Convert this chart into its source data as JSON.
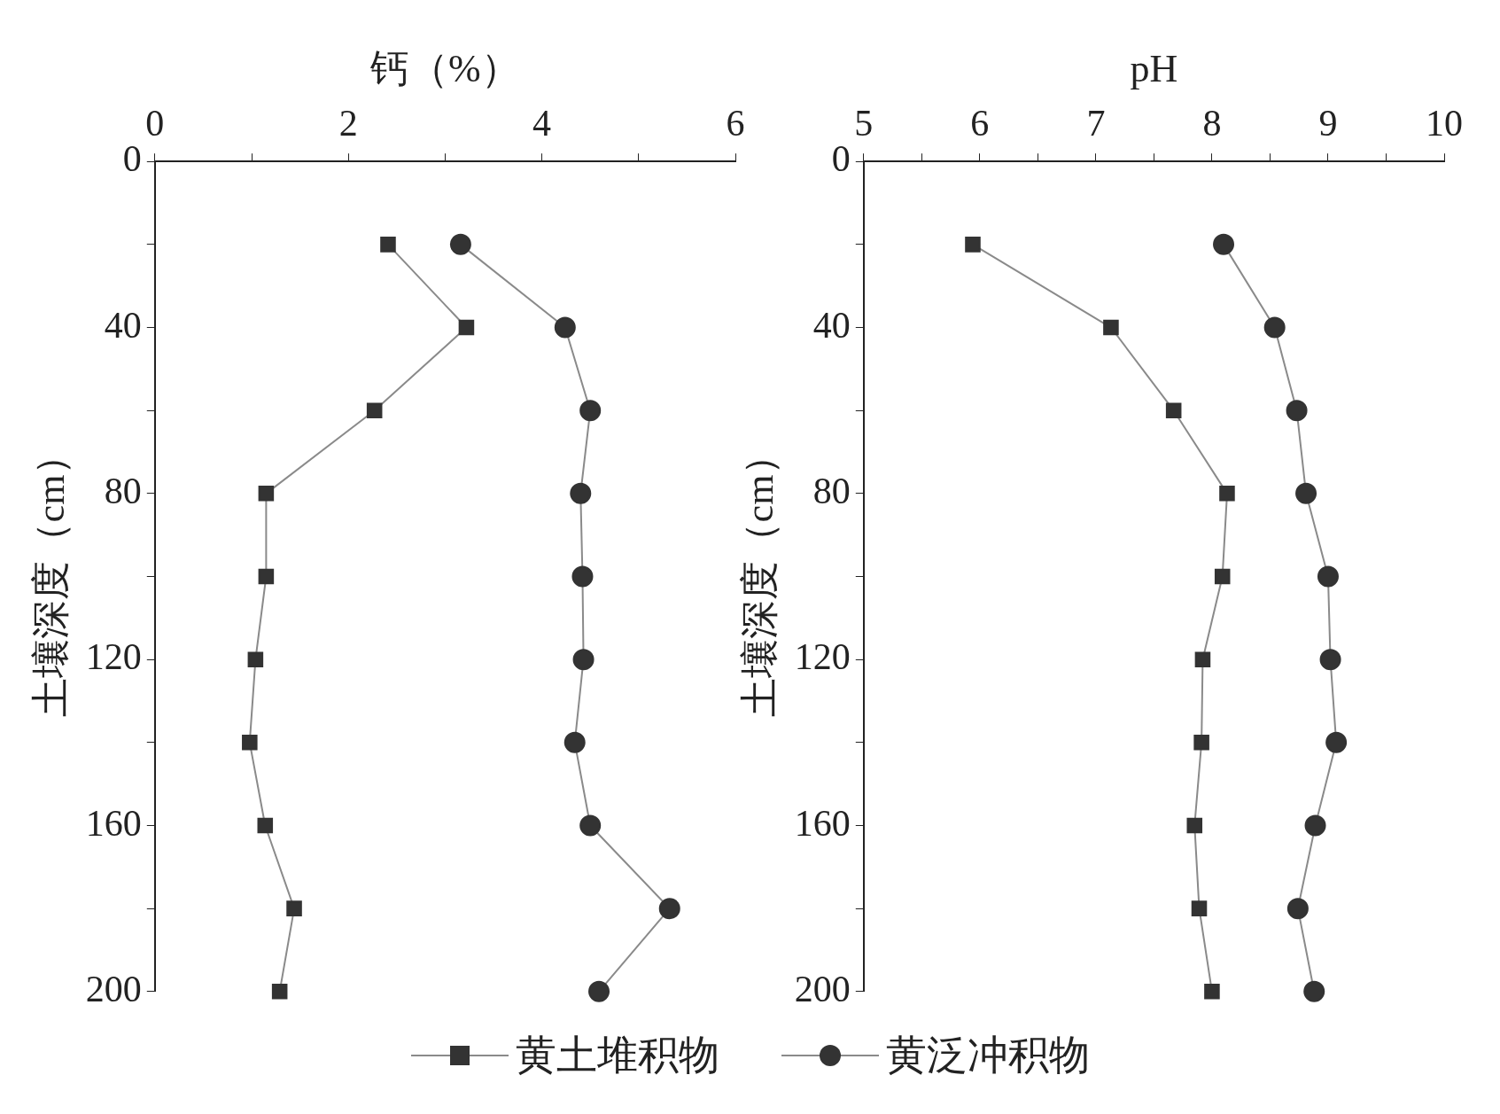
{
  "chart_data": [
    {
      "type": "line",
      "xlabel": "钙（%）",
      "ylabel": "土壤深度（cm）",
      "xlim": [
        0,
        6
      ],
      "xticks": [
        0,
        {
          "value": 1,
          "label": null
        },
        2,
        {
          "value": 3,
          "label": null
        },
        4,
        {
          "value": 5,
          "label": null
        },
        6
      ],
      "ylim": [
        200,
        0
      ],
      "yticks": [
        0,
        {
          "value": 20,
          "label": null
        },
        40,
        {
          "value": 60,
          "label": null
        },
        80,
        {
          "value": 100,
          "label": null
        },
        120,
        {
          "value": 140,
          "label": null
        },
        160,
        {
          "value": 180,
          "label": null
        },
        200
      ],
      "legend": "bottom",
      "series": [
        {
          "name": "黄土堆积物",
          "color": "#333333",
          "marker": "square",
          "x": [
            2.41,
            3.22,
            2.27,
            1.15,
            1.15,
            1.04,
            0.98,
            1.14,
            1.44,
            1.29
          ],
          "values": [
            20,
            40,
            60,
            80,
            100,
            120,
            140,
            160,
            180,
            200
          ]
        },
        {
          "name": "黄泛冲积物",
          "color": "#333333",
          "marker": "circle",
          "x": [
            3.16,
            4.24,
            4.5,
            4.4,
            4.42,
            4.43,
            4.34,
            4.5,
            5.32,
            4.59
          ],
          "values": [
            20,
            40,
            60,
            80,
            100,
            120,
            140,
            160,
            180,
            200
          ]
        }
      ]
    },
    {
      "type": "line",
      "xlabel": "pH",
      "ylabel": "土壤深度（cm）",
      "xlim": [
        5,
        10
      ],
      "xticks": [
        5,
        {
          "value": 5.5,
          "label": null
        },
        6,
        {
          "value": 6.5,
          "label": null
        },
        7,
        {
          "value": 7.5,
          "label": null
        },
        8,
        {
          "value": 8.5,
          "label": null
        },
        9,
        {
          "value": 9.5,
          "label": null
        },
        10
      ],
      "ylim": [
        200,
        0
      ],
      "yticks": [
        0,
        {
          "value": 20,
          "label": null
        },
        40,
        {
          "value": 60,
          "label": null
        },
        80,
        {
          "value": 100,
          "label": null
        },
        120,
        {
          "value": 140,
          "label": null
        },
        160,
        {
          "value": 180,
          "label": null
        },
        200
      ],
      "series": [
        {
          "color": "#333333",
          "marker": "square",
          "x": [
            5.94,
            7.13,
            7.67,
            8.13,
            8.09,
            7.92,
            7.91,
            7.85,
            7.89,
            8.0
          ],
          "values": [
            20,
            40,
            60,
            80,
            100,
            120,
            140,
            160,
            180,
            200
          ]
        },
        {
          "color": "#333333",
          "marker": "circle",
          "x": [
            8.1,
            8.54,
            8.73,
            8.81,
            9.0,
            9.02,
            9.07,
            8.89,
            8.74,
            8.88
          ],
          "values": [
            20,
            40,
            60,
            80,
            100,
            120,
            140,
            160,
            180,
            200
          ]
        }
      ]
    }
  ]
}
